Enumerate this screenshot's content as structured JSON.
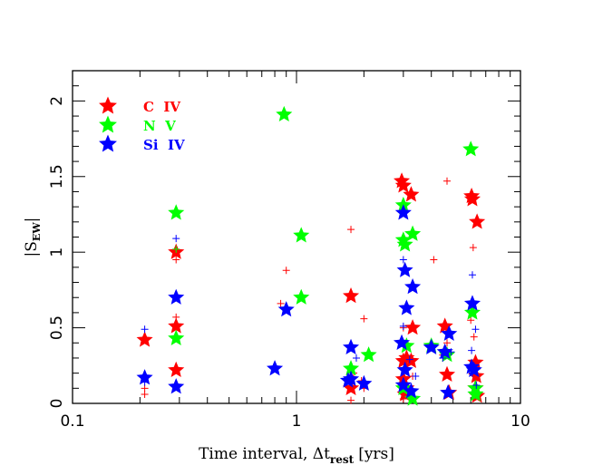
{
  "chart_data": {
    "type": "scatter",
    "title": "",
    "xlabel": {
      "main": "Time interval, Δt",
      "sub": "rest",
      "unit": "[yrs]"
    },
    "ylabel": {
      "main": "|S",
      "sub": "EW",
      "end": "|"
    },
    "xscale": "log",
    "xlim": [
      0.1,
      10
    ],
    "ylim": [
      0,
      2.2
    ],
    "xticks": [
      {
        "value": 0.1,
        "label": "0.1"
      },
      {
        "value": 1,
        "label": "1"
      },
      {
        "value": 10,
        "label": "10"
      }
    ],
    "yticks": [
      {
        "value": 0,
        "label": "0"
      },
      {
        "value": 0.5,
        "label": "0.5"
      },
      {
        "value": 1,
        "label": "1"
      },
      {
        "value": 1.5,
        "label": "1.5"
      },
      {
        "value": 2,
        "label": "2"
      }
    ],
    "legend_position": "top-left",
    "series": [
      {
        "name": "C IV",
        "color": "#ff0000",
        "stars": [
          [
            0.21,
            0.42
          ],
          [
            0.29,
            1.0
          ],
          [
            0.29,
            0.51
          ],
          [
            0.29,
            0.22
          ],
          [
            1.75,
            0.71
          ],
          [
            1.75,
            0.1
          ],
          [
            2.95,
            1.47
          ],
          [
            3.0,
            1.44
          ],
          [
            3.25,
            1.38
          ],
          [
            3.0,
            0.28
          ],
          [
            3.1,
            0.3
          ],
          [
            3.25,
            0.28
          ],
          [
            3.3,
            0.5
          ],
          [
            3.0,
            0.16
          ],
          [
            3.1,
            0.1
          ],
          [
            3.05,
            0.06
          ],
          [
            4.6,
            0.51
          ],
          [
            4.7,
            0.19
          ],
          [
            4.8,
            0.07
          ],
          [
            6.05,
            1.37
          ],
          [
            6.1,
            1.35
          ],
          [
            6.4,
            1.2
          ],
          [
            6.3,
            0.27
          ],
          [
            6.35,
            0.18
          ],
          [
            6.4,
            0.05
          ],
          [
            6.3,
            0.1
          ]
        ],
        "plus": [
          [
            0.21,
            0.1
          ],
          [
            0.21,
            0.06
          ],
          [
            0.29,
            0.95
          ],
          [
            0.29,
            0.57
          ],
          [
            0.85,
            0.66
          ],
          [
            0.9,
            0.88
          ],
          [
            1.75,
            1.15
          ],
          [
            2.0,
            0.56
          ],
          [
            1.8,
            0.2
          ],
          [
            1.95,
            0.15
          ],
          [
            2.0,
            0.1
          ],
          [
            1.75,
            0.02
          ],
          [
            3.0,
            0.5
          ],
          [
            3.0,
            0.38
          ],
          [
            3.1,
            0.22
          ],
          [
            3.3,
            0.18
          ],
          [
            3.0,
            0.03
          ],
          [
            4.7,
            1.47
          ],
          [
            4.1,
            0.95
          ],
          [
            4.7,
            0.4
          ],
          [
            4.5,
            0.32
          ],
          [
            6.0,
            0.55
          ],
          [
            6.15,
            1.03
          ],
          [
            6.2,
            0.44
          ],
          [
            6.3,
            0.15
          ]
        ]
      },
      {
        "name": "N V",
        "color": "#00ff00",
        "stars": [
          [
            0.29,
            1.26
          ],
          [
            0.29,
            0.43
          ],
          [
            0.88,
            1.91
          ],
          [
            1.05,
            1.11
          ],
          [
            1.05,
            0.7
          ],
          [
            1.75,
            0.23
          ],
          [
            2.1,
            0.32
          ],
          [
            3.0,
            1.31
          ],
          [
            3.0,
            1.08
          ],
          [
            3.05,
            1.05
          ],
          [
            3.3,
            1.12
          ],
          [
            3.1,
            0.38
          ],
          [
            3.0,
            0.1
          ],
          [
            3.3,
            0.03
          ],
          [
            4.0,
            0.38
          ],
          [
            4.7,
            0.32
          ],
          [
            6.0,
            1.68
          ],
          [
            6.1,
            0.6
          ],
          [
            6.3,
            0.1
          ],
          [
            6.3,
            0.06
          ]
        ],
        "plus": [
          [
            0.29,
            1.02
          ],
          [
            6.35,
            0.05
          ]
        ]
      },
      {
        "name": "Si IV",
        "color": "#0000ff",
        "stars": [
          [
            0.21,
            0.17
          ],
          [
            0.29,
            0.7
          ],
          [
            0.29,
            0.11
          ],
          [
            0.8,
            0.23
          ],
          [
            0.9,
            0.62
          ],
          [
            1.75,
            0.37
          ],
          [
            1.75,
            0.16
          ],
          [
            1.7,
            0.15
          ],
          [
            2.0,
            0.13
          ],
          [
            3.0,
            1.26
          ],
          [
            3.05,
            0.88
          ],
          [
            3.1,
            0.63
          ],
          [
            3.3,
            0.77
          ],
          [
            2.95,
            0.4
          ],
          [
            3.05,
            0.22
          ],
          [
            3.0,
            0.12
          ],
          [
            3.25,
            0.08
          ],
          [
            4.0,
            0.37
          ],
          [
            4.6,
            0.34
          ],
          [
            4.8,
            0.46
          ],
          [
            4.75,
            0.07
          ],
          [
            6.1,
            0.66
          ],
          [
            6.05,
            0.24
          ],
          [
            6.2,
            0.22
          ]
        ],
        "plus": [
          [
            0.21,
            0.49
          ],
          [
            0.21,
            0.14
          ],
          [
            0.29,
            1.09
          ],
          [
            1.85,
            0.3
          ],
          [
            3.0,
            0.95
          ],
          [
            3.0,
            0.51
          ],
          [
            3.2,
            0.29
          ],
          [
            3.4,
            0.18
          ],
          [
            4.5,
            0.3
          ],
          [
            4.9,
            0.34
          ],
          [
            6.1,
            0.85
          ],
          [
            6.05,
            0.35
          ],
          [
            6.3,
            0.49
          ],
          [
            6.1,
            0.2
          ],
          [
            6.35,
            0.12
          ]
        ]
      }
    ]
  }
}
